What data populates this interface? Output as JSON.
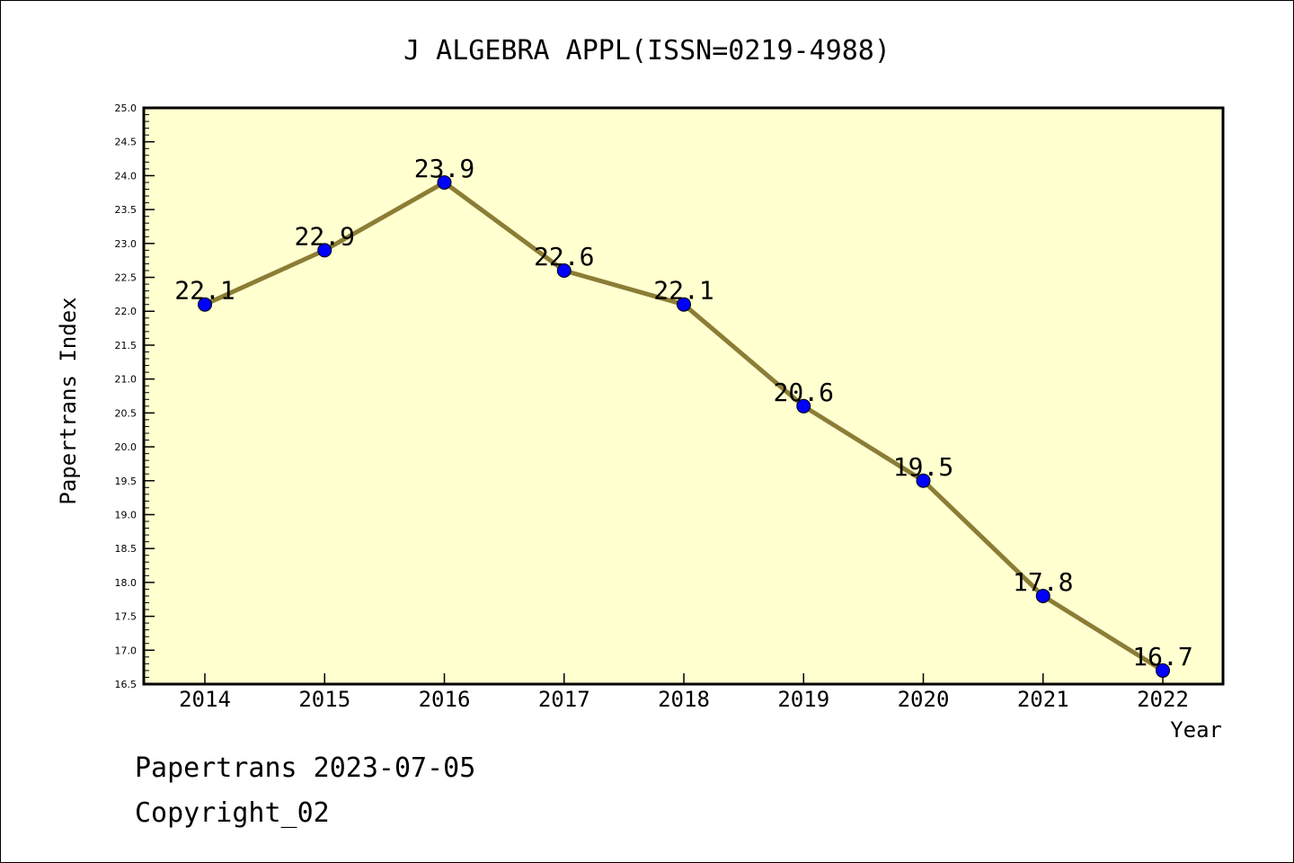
{
  "chart_data": {
    "type": "line",
    "title": "J ALGEBRA APPL(ISSN=0219-4988)",
    "xlabel": "Year",
    "ylabel": "Papertrans Index",
    "categories": [
      "2014",
      "2015",
      "2016",
      "2017",
      "2018",
      "2019",
      "2020",
      "2021",
      "2022"
    ],
    "series": [
      {
        "values": [
          22.1,
          22.9,
          23.9,
          22.6,
          22.1,
          20.6,
          19.5,
          17.8,
          16.7
        ]
      }
    ],
    "data_labels": [
      "22.1",
      "22.9",
      "23.9",
      "22.6",
      "22.1",
      "20.6",
      "19.5",
      "17.8",
      "16.7"
    ],
    "ylim": [
      16.5,
      25.0
    ],
    "yticks": [
      "16.5",
      "17.0",
      "17.5",
      "18.0",
      "18.5",
      "19.0",
      "19.5",
      "20.0",
      "20.5",
      "21.0",
      "21.5",
      "22.0",
      "22.5",
      "23.0",
      "23.5",
      "24.0",
      "24.5",
      "25.0"
    ],
    "grid": false,
    "colors": {
      "plot_background": "#ffffd0",
      "line": "#8b7d35",
      "marker": "#0000ff"
    }
  },
  "footer": {
    "source_line": "Papertrans 2023-07-05",
    "copyright_line": "Copyright_02"
  }
}
